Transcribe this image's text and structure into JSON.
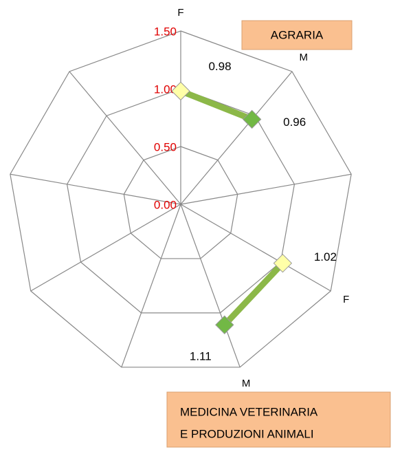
{
  "chart_data": {
    "type": "radar",
    "categories": [
      "F",
      "M",
      null,
      "F",
      "M",
      null,
      null,
      null,
      null
    ],
    "series": [
      {
        "values": [
          0.98,
          0.96,
          null,
          1.02,
          1.11,
          null,
          null,
          null,
          null
        ],
        "color": "#8cb848"
      }
    ],
    "marker_colors": {
      "F": "#ffffa8",
      "M": "#72b845"
    },
    "ylim": [
      0,
      1.5
    ],
    "yticks": [
      {
        "value": 0,
        "label": "0.00"
      },
      {
        "value": 0.5,
        "label": "0.50"
      },
      {
        "value": 1,
        "label": "1.00"
      },
      {
        "value": 1.5,
        "label": "1.50"
      }
    ],
    "annotations": [
      "AGRARIA",
      "MEDICINA VETERINARIA",
      "E PRODUZIONI ANIMALI"
    ]
  }
}
